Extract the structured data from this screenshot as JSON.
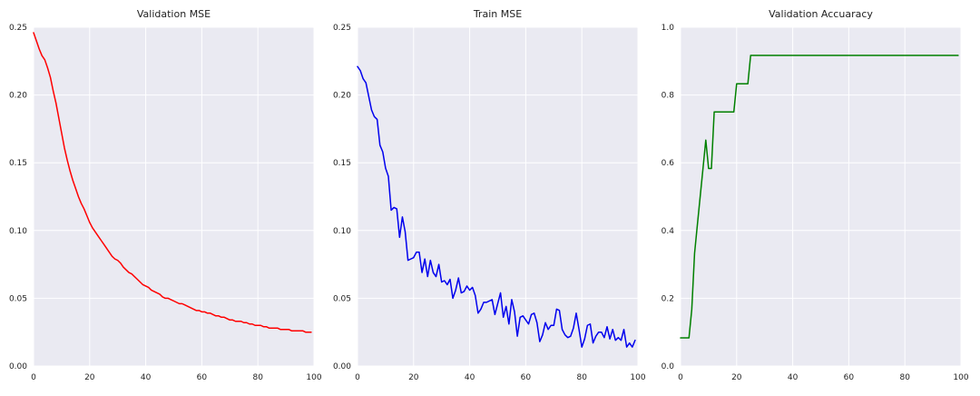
{
  "chart_data": [
    {
      "type": "line",
      "title": "Validation MSE",
      "xlabel": "",
      "ylabel": "",
      "xlim": [
        0,
        100
      ],
      "ylim": [
        0,
        0.25
      ],
      "xticks": [
        "0",
        "20",
        "40",
        "60",
        "80",
        "100"
      ],
      "yticks": [
        "0.00",
        "0.05",
        "0.10",
        "0.15",
        "0.20",
        "0.25"
      ],
      "grid": true,
      "color": "#ff0000",
      "series": [
        {
          "x": [
            0,
            1,
            2,
            3,
            4,
            5,
            6,
            7,
            8,
            9,
            10,
            11,
            12,
            13,
            14,
            15,
            16,
            17,
            18,
            19,
            20,
            21,
            22,
            23,
            24,
            25,
            26,
            27,
            28,
            29,
            30,
            31,
            32,
            33,
            34,
            35,
            36,
            37,
            38,
            39,
            40,
            41,
            42,
            43,
            44,
            45,
            46,
            47,
            48,
            49,
            50,
            51,
            52,
            53,
            54,
            55,
            56,
            57,
            58,
            59,
            60,
            61,
            62,
            63,
            64,
            65,
            66,
            67,
            68,
            69,
            70,
            71,
            72,
            73,
            74,
            75,
            76,
            77,
            78,
            79,
            80,
            81,
            82,
            83,
            84,
            85,
            86,
            87,
            88,
            89,
            90,
            91,
            92,
            93,
            94,
            95,
            96,
            97,
            98,
            99
          ],
          "values": [
            0.246,
            0.24,
            0.234,
            0.229,
            0.226,
            0.22,
            0.213,
            0.203,
            0.194,
            0.183,
            0.172,
            0.161,
            0.152,
            0.144,
            0.137,
            0.131,
            0.125,
            0.12,
            0.116,
            0.111,
            0.106,
            0.102,
            0.099,
            0.096,
            0.093,
            0.09,
            0.087,
            0.084,
            0.081,
            0.079,
            0.078,
            0.076,
            0.073,
            0.071,
            0.069,
            0.068,
            0.066,
            0.064,
            0.062,
            0.06,
            0.059,
            0.058,
            0.056,
            0.055,
            0.054,
            0.053,
            0.051,
            0.05,
            0.05,
            0.049,
            0.048,
            0.047,
            0.046,
            0.046,
            0.045,
            0.044,
            0.043,
            0.042,
            0.041,
            0.041,
            0.04,
            0.04,
            0.039,
            0.039,
            0.038,
            0.037,
            0.037,
            0.036,
            0.036,
            0.035,
            0.034,
            0.034,
            0.033,
            0.033,
            0.033,
            0.032,
            0.032,
            0.031,
            0.031,
            0.03,
            0.03,
            0.03,
            0.029,
            0.029,
            0.028,
            0.028,
            0.028,
            0.028,
            0.027,
            0.027,
            0.027,
            0.027,
            0.026,
            0.026,
            0.026,
            0.026,
            0.026,
            0.025,
            0.025,
            0.025
          ]
        }
      ]
    },
    {
      "type": "line",
      "title": "Train MSE",
      "xlabel": "",
      "ylabel": "",
      "xlim": [
        0,
        100
      ],
      "ylim": [
        0,
        0.25
      ],
      "xticks": [
        "0",
        "20",
        "40",
        "60",
        "80",
        "100"
      ],
      "yticks": [
        "0.00",
        "0.05",
        "0.10",
        "0.15",
        "0.20",
        "0.25"
      ],
      "grid": true,
      "color": "#0000ee",
      "series": [
        {
          "x": [
            0,
            1,
            2,
            3,
            4,
            5,
            6,
            7,
            8,
            9,
            10,
            11,
            12,
            13,
            14,
            15,
            16,
            17,
            18,
            19,
            20,
            21,
            22,
            23,
            24,
            25,
            26,
            27,
            28,
            29,
            30,
            31,
            32,
            33,
            34,
            35,
            36,
            37,
            38,
            39,
            40,
            41,
            42,
            43,
            44,
            45,
            46,
            47,
            48,
            49,
            50,
            51,
            52,
            53,
            54,
            55,
            56,
            57,
            58,
            59,
            60,
            61,
            62,
            63,
            64,
            65,
            66,
            67,
            68,
            69,
            70,
            71,
            72,
            73,
            74,
            75,
            76,
            77,
            78,
            79,
            80,
            81,
            82,
            83,
            84,
            85,
            86,
            87,
            88,
            89,
            90,
            91,
            92,
            93,
            94,
            95,
            96,
            97,
            98,
            99
          ],
          "values": [
            0.221,
            0.218,
            0.212,
            0.209,
            0.199,
            0.189,
            0.184,
            0.182,
            0.163,
            0.158,
            0.146,
            0.14,
            0.115,
            0.117,
            0.116,
            0.095,
            0.11,
            0.099,
            0.078,
            0.079,
            0.08,
            0.084,
            0.084,
            0.069,
            0.079,
            0.066,
            0.078,
            0.069,
            0.066,
            0.075,
            0.062,
            0.063,
            0.06,
            0.064,
            0.05,
            0.056,
            0.065,
            0.054,
            0.055,
            0.059,
            0.056,
            0.058,
            0.052,
            0.039,
            0.042,
            0.047,
            0.047,
            0.048,
            0.049,
            0.038,
            0.046,
            0.054,
            0.036,
            0.044,
            0.031,
            0.049,
            0.04,
            0.022,
            0.036,
            0.037,
            0.034,
            0.031,
            0.038,
            0.039,
            0.032,
            0.018,
            0.023,
            0.032,
            0.027,
            0.03,
            0.03,
            0.042,
            0.041,
            0.027,
            0.023,
            0.021,
            0.022,
            0.028,
            0.039,
            0.027,
            0.014,
            0.02,
            0.03,
            0.031,
            0.017,
            0.022,
            0.025,
            0.025,
            0.021,
            0.029,
            0.02,
            0.027,
            0.019,
            0.021,
            0.019,
            0.027,
            0.014,
            0.017,
            0.014,
            0.019
          ]
        }
      ]
    },
    {
      "type": "line",
      "title": "Validation Accuaracy",
      "xlabel": "",
      "ylabel": "",
      "xlim": [
        0,
        100
      ],
      "ylim": [
        0,
        1.0
      ],
      "xticks": [
        "0",
        "20",
        "40",
        "60",
        "80",
        "100"
      ],
      "yticks": [
        "0.0",
        "0.2",
        "0.4",
        "0.6",
        "0.8",
        "1.0"
      ],
      "grid": true,
      "color": "#008000",
      "series": [
        {
          "x": [
            0,
            1,
            2,
            3,
            4,
            5,
            6,
            7,
            8,
            9,
            10,
            11,
            12,
            13,
            14,
            15,
            16,
            17,
            18,
            19,
            20,
            21,
            22,
            23,
            24,
            25,
            26,
            27,
            28,
            29,
            30,
            31,
            32,
            33,
            34,
            35,
            36,
            37,
            38,
            39,
            40,
            41,
            42,
            43,
            44,
            45,
            46,
            47,
            48,
            49,
            50,
            51,
            52,
            53,
            54,
            55,
            56,
            57,
            58,
            59,
            60,
            61,
            62,
            63,
            64,
            65,
            66,
            67,
            68,
            69,
            70,
            71,
            72,
            73,
            74,
            75,
            76,
            77,
            78,
            79,
            80,
            81,
            82,
            83,
            84,
            85,
            86,
            87,
            88,
            89,
            90,
            91,
            92,
            93,
            94,
            95,
            96,
            97,
            98,
            99
          ],
          "values": [
            0.083,
            0.083,
            0.083,
            0.083,
            0.167,
            0.333,
            0.417,
            0.5,
            0.583,
            0.667,
            0.583,
            0.583,
            0.75,
            0.75,
            0.75,
            0.75,
            0.75,
            0.75,
            0.75,
            0.75,
            0.833,
            0.833,
            0.833,
            0.833,
            0.833,
            0.917,
            0.917,
            0.917,
            0.917,
            0.917,
            0.917,
            0.917,
            0.917,
            0.917,
            0.917,
            0.917,
            0.917,
            0.917,
            0.917,
            0.917,
            0.917,
            0.917,
            0.917,
            0.917,
            0.917,
            0.917,
            0.917,
            0.917,
            0.917,
            0.917,
            0.917,
            0.917,
            0.917,
            0.917,
            0.917,
            0.917,
            0.917,
            0.917,
            0.917,
            0.917,
            0.917,
            0.917,
            0.917,
            0.917,
            0.917,
            0.917,
            0.917,
            0.917,
            0.917,
            0.917,
            0.917,
            0.917,
            0.917,
            0.917,
            0.917,
            0.917,
            0.917,
            0.917,
            0.917,
            0.917,
            0.917,
            0.917,
            0.917,
            0.917,
            0.917,
            0.917,
            0.917,
            0.917,
            0.917,
            0.917,
            0.917,
            0.917,
            0.917,
            0.917,
            0.917,
            0.917,
            0.917,
            0.917,
            0.917,
            0.917
          ]
        }
      ]
    }
  ],
  "theme": {
    "panel_background": "#eaeaf2",
    "grid_color": "#ffffff"
  }
}
